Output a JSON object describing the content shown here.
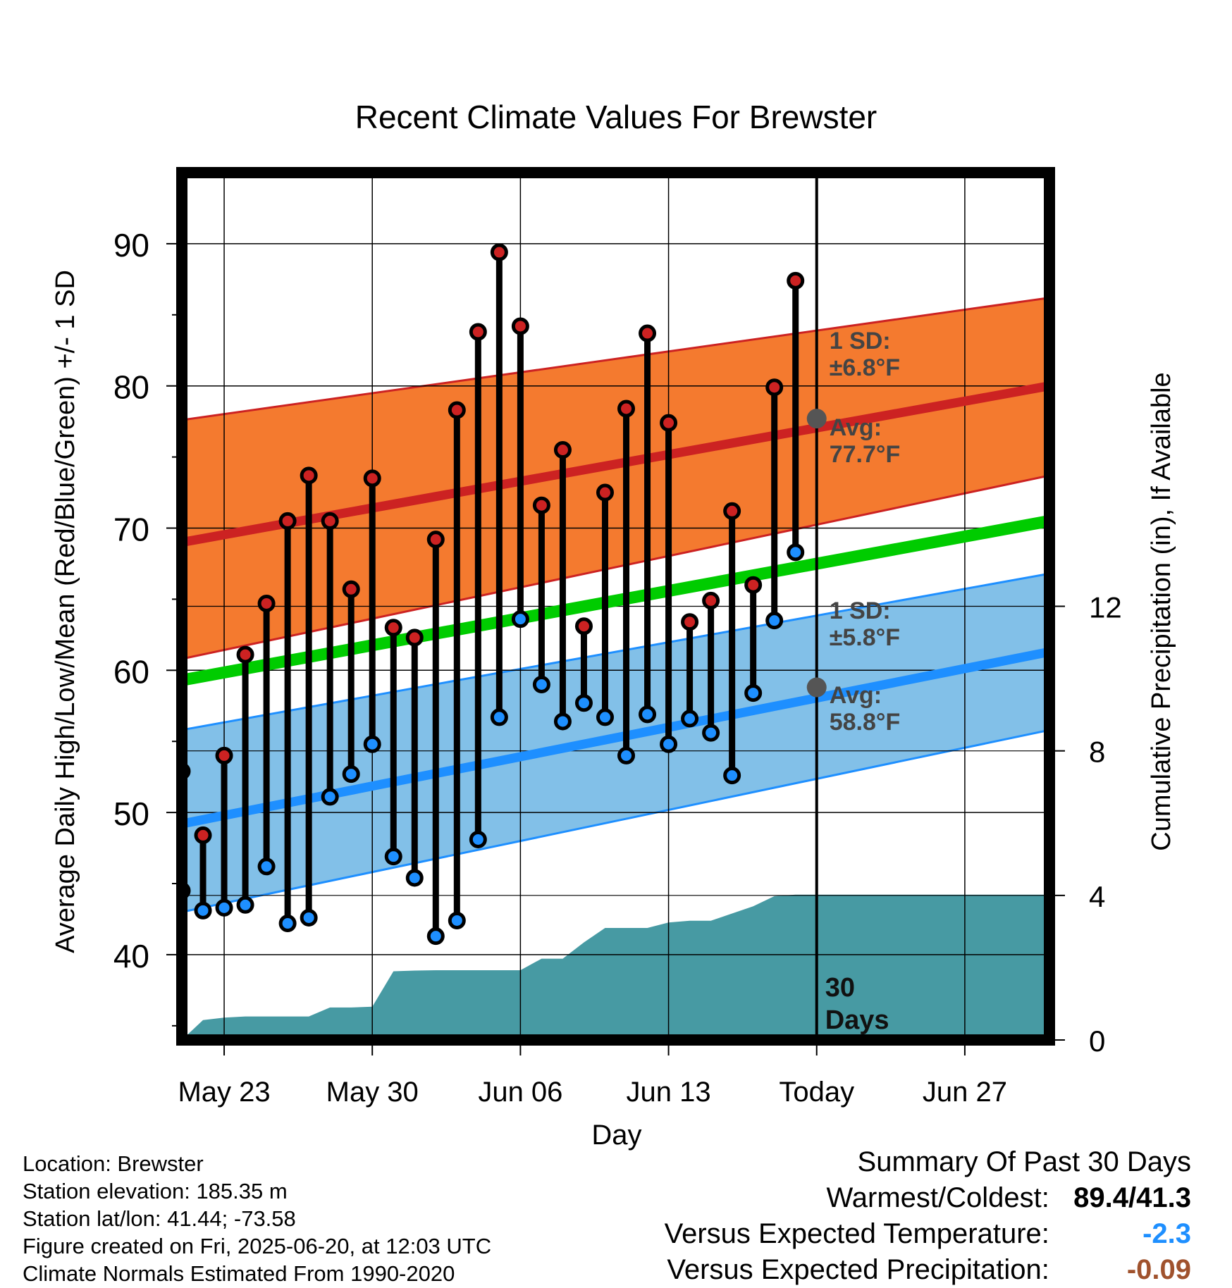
{
  "chart_data": {
    "type": "line",
    "title": "Recent Climate Values For Brewster",
    "xlabel": "Day",
    "ylabel": "Average Daily High/Low/Mean (Red/Blue/Green) +/- 1 SD",
    "ylabel_right": "Cumulative Precipitation (in), If Available",
    "ylim": [
      34,
      95
    ],
    "ylim_right": [
      0,
      24
    ],
    "grid": true,
    "y_ticks": [
      40,
      50,
      60,
      70,
      80,
      90
    ],
    "y_ticks_right": [
      0,
      4,
      8,
      12
    ],
    "x_day_range": [
      "May 21",
      "Jun 30"
    ],
    "x_ticks": [
      {
        "date": "May 23",
        "label": "May 23"
      },
      {
        "date": "May 30",
        "label": "May 30"
      },
      {
        "date": "Jun 06",
        "label": "Jun 06"
      },
      {
        "date": "Jun 13",
        "label": "Jun 13"
      },
      {
        "date": "Jun 20",
        "label": "Today"
      },
      {
        "date": "Jun 27",
        "label": "Jun 27"
      }
    ],
    "today_marker": {
      "date": "Jun 20",
      "label": "30\nDays"
    },
    "normals": {
      "high_avg": {
        "start": 69.0,
        "end": 80.0
      },
      "high_upper": {
        "start": 77.6,
        "end": 86.2
      },
      "high_lower": {
        "start": 60.8,
        "end": 73.7
      },
      "mean": {
        "start": 59.3,
        "end": 70.5
      },
      "low_avg": {
        "start": 49.2,
        "end": 61.3
      },
      "low_upper": {
        "start": 55.8,
        "end": 66.8
      },
      "low_lower": {
        "start": 43.0,
        "end": 55.8
      }
    },
    "annotations": {
      "high_sd": {
        "label": "1 SD:",
        "value": "±6.8°F"
      },
      "high_avg": {
        "label": "Avg:",
        "value": "77.7°F",
        "y": 77.7
      },
      "low_sd": {
        "label": "1 SD:",
        "value": "±5.8°F"
      },
      "low_avg": {
        "label": "Avg:",
        "value": "58.8°F",
        "y": 58.8
      }
    },
    "daily": {
      "dates": [
        "May 21",
        "May 22",
        "May 23",
        "May 24",
        "May 25",
        "May 26",
        "May 27",
        "May 28",
        "May 29",
        "May 30",
        "May 31",
        "Jun 01",
        "Jun 02",
        "Jun 03",
        "Jun 04",
        "Jun 05",
        "Jun 06",
        "Jun 07",
        "Jun 08",
        "Jun 09",
        "Jun 10",
        "Jun 11",
        "Jun 12",
        "Jun 13",
        "Jun 14",
        "Jun 15",
        "Jun 16",
        "Jun 17",
        "Jun 18",
        "Jun 19"
      ],
      "high": [
        52.9,
        48.4,
        54.0,
        61.1,
        64.7,
        70.5,
        73.7,
        70.5,
        65.7,
        73.5,
        63.0,
        62.3,
        69.2,
        78.3,
        83.8,
        89.4,
        84.2,
        71.6,
        75.5,
        63.1,
        72.5,
        78.4,
        83.7,
        77.4,
        63.4,
        64.9,
        71.2,
        66.0,
        79.9,
        87.4
      ],
      "low": [
        44.5,
        43.1,
        43.3,
        43.5,
        46.2,
        42.2,
        42.6,
        51.1,
        52.7,
        54.8,
        46.9,
        45.4,
        41.3,
        42.4,
        48.1,
        56.7,
        63.6,
        59.0,
        56.4,
        57.7,
        56.7,
        54.0,
        56.9,
        54.8,
        56.6,
        55.6,
        52.6,
        58.4,
        63.5,
        68.3
      ]
    },
    "precip_cumulative": {
      "dates": [
        "May 21",
        "May 22",
        "May 23",
        "May 24",
        "May 25",
        "May 26",
        "May 27",
        "May 28",
        "May 29",
        "May 30",
        "May 31",
        "Jun 01",
        "Jun 02",
        "Jun 03",
        "Jun 04",
        "Jun 05",
        "Jun 06",
        "Jun 07",
        "Jun 08",
        "Jun 09",
        "Jun 10",
        "Jun 11",
        "Jun 12",
        "Jun 13",
        "Jun 14",
        "Jun 15",
        "Jun 16",
        "Jun 17",
        "Jun 18",
        "Jun 19",
        "Jun 20",
        "Jun 30"
      ],
      "values": [
        0.0,
        0.55,
        0.62,
        0.65,
        0.65,
        0.65,
        0.65,
        0.9,
        0.9,
        0.92,
        1.9,
        1.92,
        1.93,
        1.93,
        1.93,
        1.93,
        1.93,
        2.25,
        2.25,
        2.7,
        3.1,
        3.1,
        3.1,
        3.25,
        3.3,
        3.3,
        3.5,
        3.7,
        3.98,
        4.02,
        4.02,
        4.02
      ]
    },
    "colors": {
      "high": "#cc2222",
      "high_band": "#f47a2f",
      "mean": "#00cc00",
      "low": "#1e8fff",
      "low_band": "#82c0e8",
      "precip": "#479aa3",
      "avg_marker": "#555555",
      "annotation": "#444444"
    }
  },
  "footer": {
    "location": "Location: Brewster",
    "elevation": "Station elevation: 185.35 m",
    "latlon": "Station lat/lon: 41.44; -73.58",
    "created": "Figure created on Fri, 2025-06-20, at 12:03 UTC",
    "normals_period": "Climate Normals Estimated From 1990-2020"
  },
  "summary": {
    "title": "Summary Of Past 30 Days",
    "warm_cold_label": "Warmest/Coldest:",
    "warm_cold_value": "89.4/41.3",
    "temp_label": "Versus Expected Temperature:",
    "temp_value": "-2.3",
    "temp_color": "#1e8fff",
    "precip_label": "Versus Expected Precipitation:",
    "precip_value": "-0.09",
    "precip_color": "#a0522d"
  }
}
